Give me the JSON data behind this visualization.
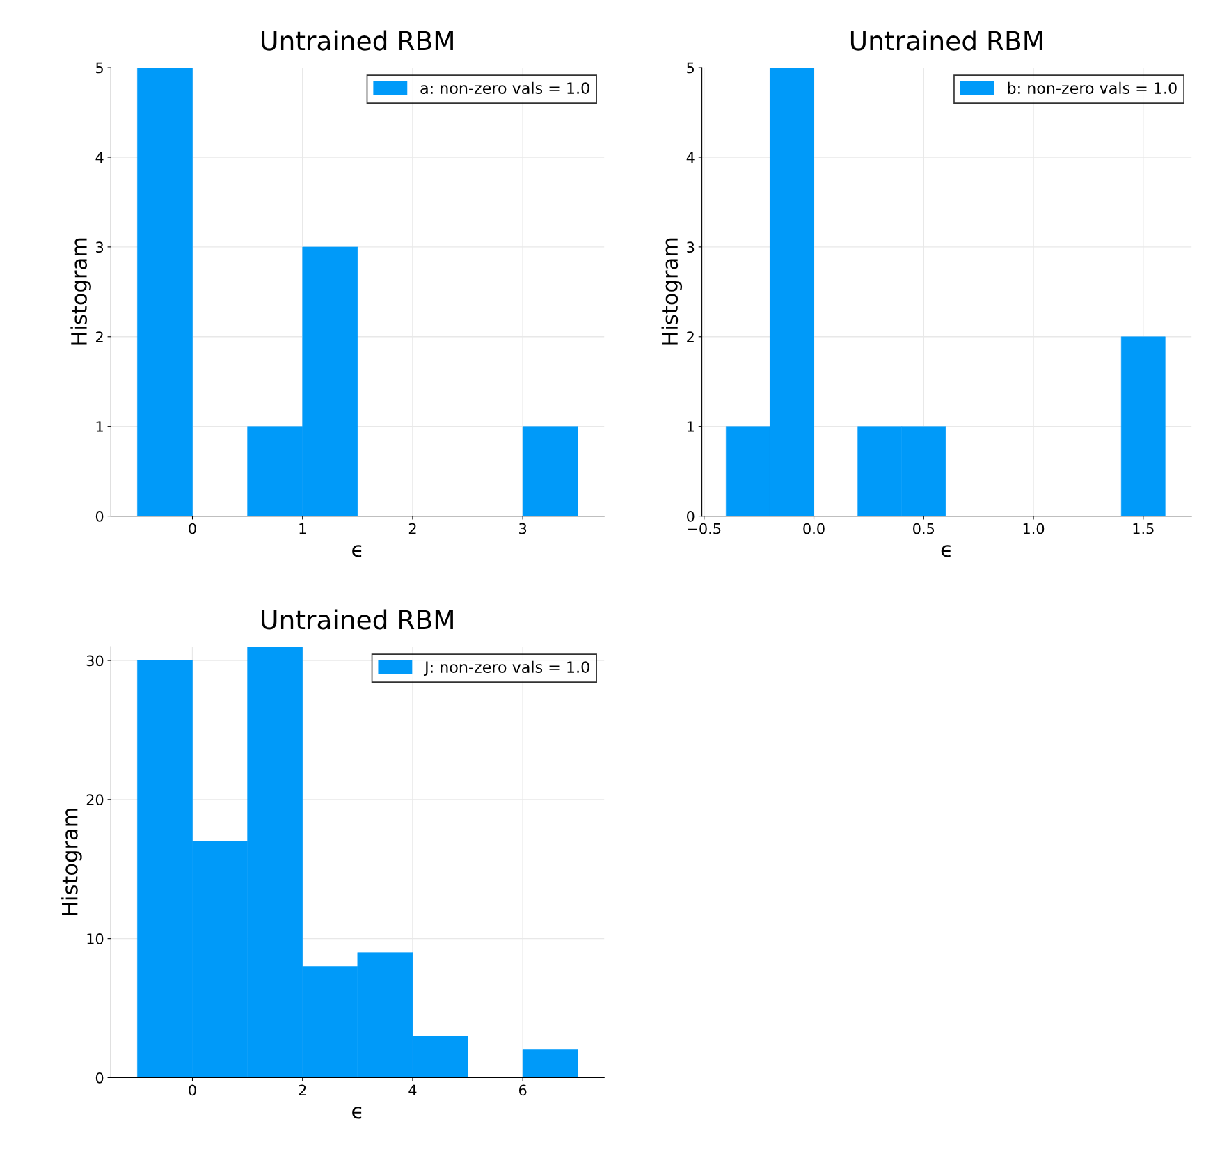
{
  "chart_data": [
    {
      "type": "histogram",
      "title": "Untrained RBM",
      "xlabel": "ϵ",
      "ylabel": "Histogram",
      "bins": [
        -0.5,
        0,
        0.5,
        1,
        1.5,
        2,
        2.5,
        3,
        3.5
      ],
      "series": [
        {
          "name": "a: non-zero vals = 1.0",
          "color": "#009af9",
          "values": [
            5,
            0,
            1,
            3,
            0,
            0,
            0,
            1
          ]
        }
      ],
      "xlim": [
        -0.74,
        3.74
      ],
      "xticks": [
        0,
        1,
        2,
        3
      ],
      "ylim": [
        0,
        5
      ],
      "yticks": [
        0,
        1,
        2,
        3,
        4,
        5
      ],
      "grid": true,
      "legend": "top right"
    },
    {
      "type": "histogram",
      "title": "Untrained RBM",
      "xlabel": "ϵ",
      "ylabel": "Histogram",
      "bins": [
        -0.4,
        -0.2,
        0,
        0.2,
        0.4,
        0.6,
        0.8,
        1.0,
        1.2,
        1.4,
        1.6
      ],
      "series": [
        {
          "name": "b: non-zero vals = 1.0",
          "color": "#009af9",
          "values": [
            1,
            5,
            0,
            1,
            1,
            0,
            0,
            0,
            0,
            2
          ]
        }
      ],
      "xlim": [
        -0.51,
        1.72
      ],
      "xticks": [
        {
          "value": -0.5,
          "label": "−0.5"
        },
        {
          "value": 0,
          "label": "0.0"
        },
        {
          "value": 0.5,
          "label": "0.5"
        },
        {
          "value": 1,
          "label": "1.0"
        },
        {
          "value": 1.5,
          "label": "1.5"
        }
      ],
      "ylim": [
        0,
        5
      ],
      "yticks": [
        0,
        1,
        2,
        3,
        4,
        5
      ],
      "grid": true,
      "legend": "top right"
    },
    {
      "type": "histogram",
      "title": "Untrained RBM",
      "xlabel": "ϵ",
      "ylabel": "Histogram",
      "bins": [
        -1,
        0,
        1,
        2,
        3,
        4,
        5,
        6,
        7
      ],
      "series": [
        {
          "name": "J: non-zero vals = 1.0",
          "color": "#009af9",
          "values": [
            30,
            17,
            31,
            8,
            9,
            3,
            0,
            2
          ]
        }
      ],
      "xlim": [
        -1.48,
        7.48
      ],
      "xticks": [
        0,
        2,
        4,
        6
      ],
      "ylim": [
        0,
        31
      ],
      "yticks": [
        0,
        10,
        20,
        30
      ],
      "grid": true,
      "legend": "top right"
    }
  ]
}
